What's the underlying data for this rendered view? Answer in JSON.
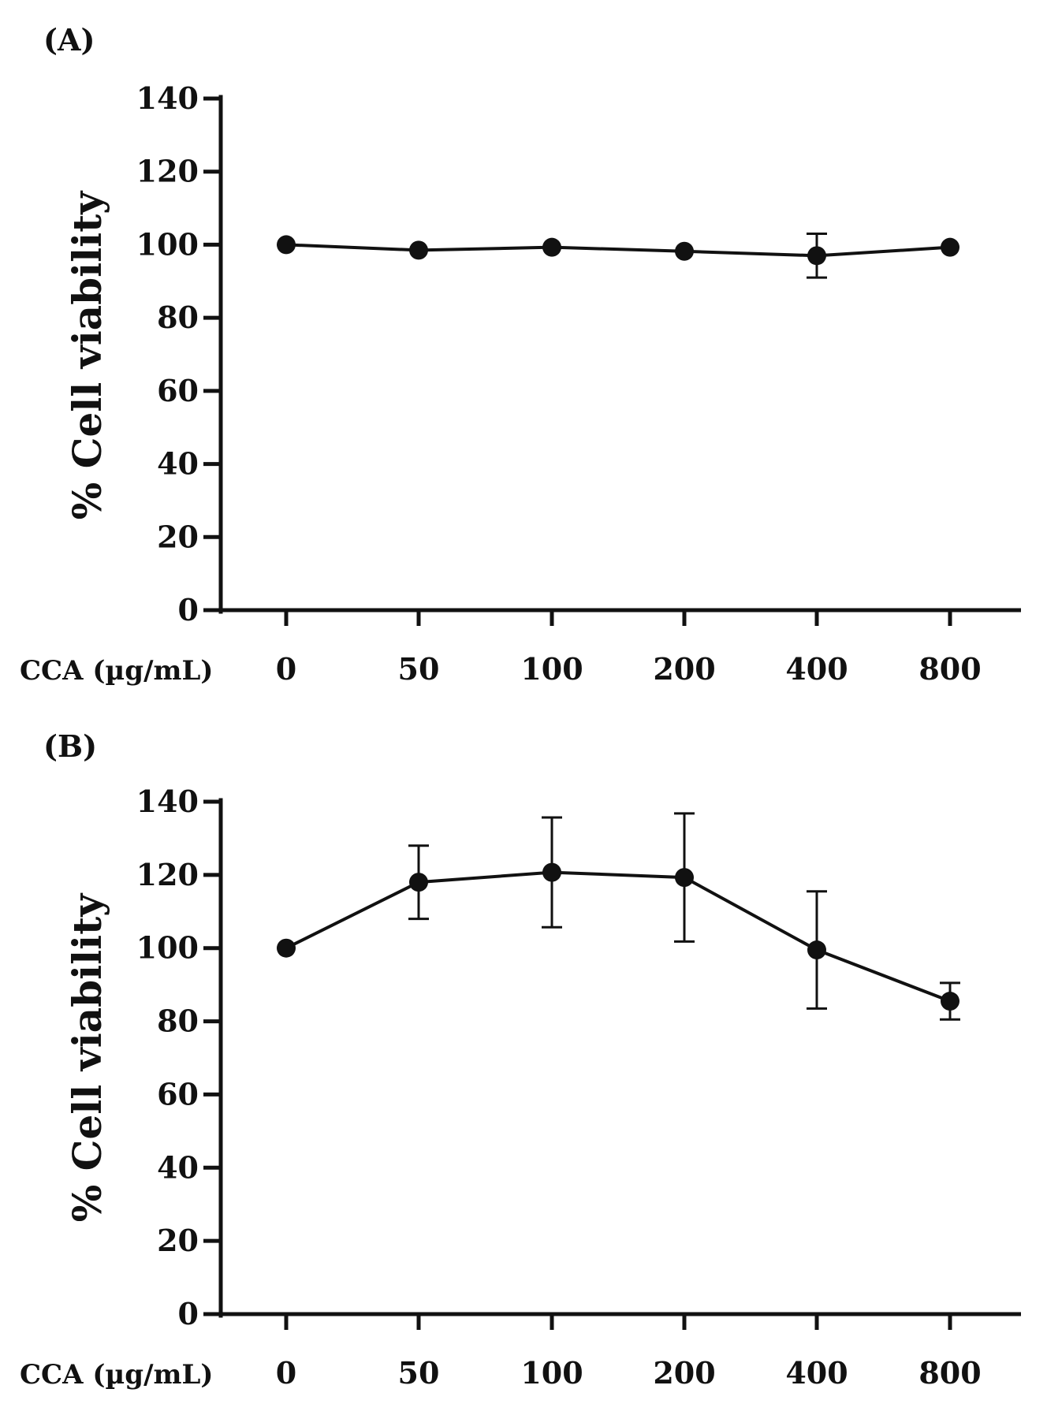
{
  "chart_data": [
    {
      "panel_label": "(A)",
      "type": "line",
      "ylabel": "% Cell viability",
      "xlabel": "CCA (µg/mL)",
      "ylim": [
        0,
        140
      ],
      "yticks": [
        0,
        20,
        40,
        60,
        80,
        100,
        120,
        140
      ],
      "ytick_labels": [
        "0",
        "20",
        "40",
        "60",
        "80",
        "100",
        "120",
        "140"
      ],
      "categories": [
        "0",
        "50",
        "100",
        "200",
        "400",
        "800"
      ],
      "values": [
        100,
        98.5,
        99.3,
        98.2,
        97,
        99.3
      ],
      "errors": [
        0,
        0,
        0,
        0,
        6,
        0
      ],
      "grid": false
    },
    {
      "panel_label": "(B)",
      "type": "line",
      "ylabel": "% Cell viability",
      "xlabel": "CCA (µg/mL)",
      "ylim": [
        0,
        140
      ],
      "yticks": [
        0,
        20,
        40,
        60,
        80,
        100,
        120,
        140
      ],
      "ytick_labels": [
        "0",
        "20",
        "40",
        "60",
        "80",
        "100",
        "120",
        "140"
      ],
      "categories": [
        "0",
        "50",
        "100",
        "200",
        "400",
        "800"
      ],
      "values": [
        100,
        118,
        120.7,
        119.3,
        99.5,
        85.5
      ],
      "errors": [
        0,
        10,
        15,
        17.5,
        16,
        5
      ],
      "grid": false
    }
  ]
}
